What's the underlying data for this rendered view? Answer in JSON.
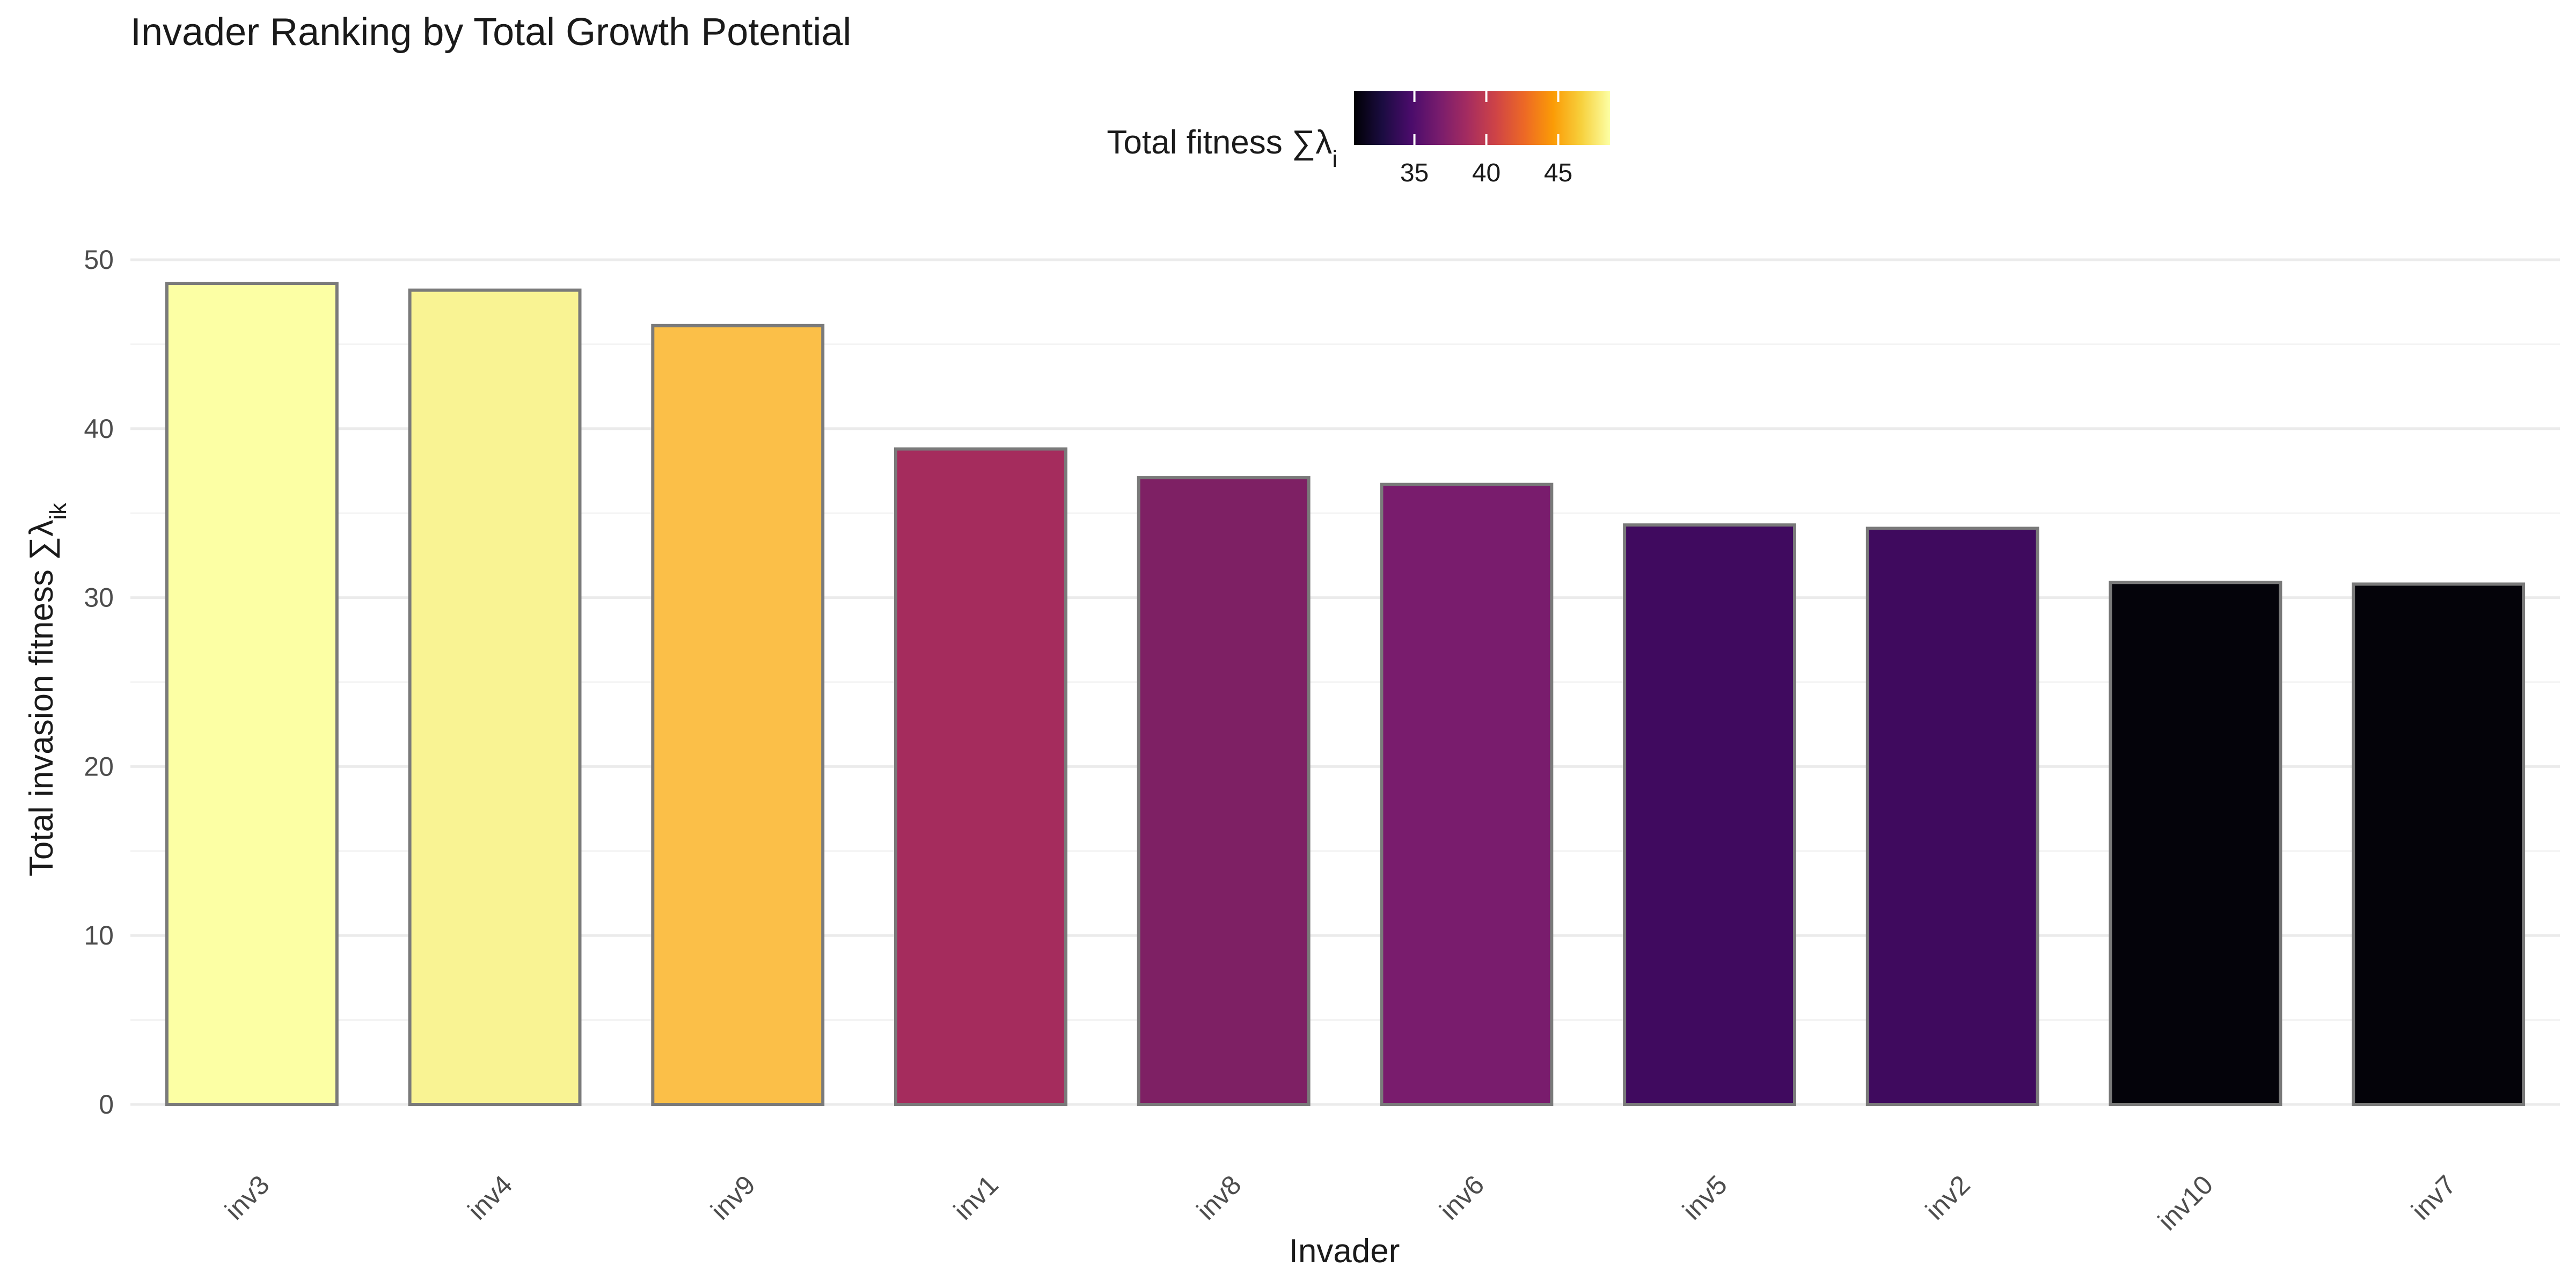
{
  "chart_data": {
    "type": "bar",
    "title": "Invader Ranking by Total Growth Potential",
    "xlabel": "Invader",
    "ylabel_prefix": "Total invasion fitness ∑λ",
    "ylabel_sub": "ik",
    "categories": [
      "inv3",
      "inv4",
      "inv9",
      "inv1",
      "inv8",
      "inv6",
      "inv5",
      "inv2",
      "inv10",
      "inv7"
    ],
    "values": [
      48.6,
      48.2,
      46.1,
      38.8,
      37.1,
      36.7,
      34.3,
      34.1,
      30.9,
      30.8
    ],
    "colors": [
      "#FCFFA4",
      "#F9F393",
      "#FBBF48",
      "#A52C5D",
      "#7E2064",
      "#791C6D",
      "#400A5F",
      "#3F0A5E",
      "#04030A",
      "#040309"
    ],
    "ylim": [
      0,
      50
    ],
    "yticks": [
      0,
      10,
      20,
      30,
      40,
      50
    ],
    "grid": true,
    "legend": {
      "placement": "top",
      "title_prefix": "Total fitness ∑λ",
      "title_sub": "i",
      "range": [
        30.8,
        48.6
      ],
      "ticks": [
        35,
        40,
        45
      ],
      "colormap": "inferno",
      "stops": [
        "#000004",
        "#1B0C41",
        "#4A0C6B",
        "#781C6D",
        "#A52C60",
        "#CF4446",
        "#ED6925",
        "#FB9B06",
        "#F7D13D",
        "#FCFFA4"
      ]
    }
  }
}
